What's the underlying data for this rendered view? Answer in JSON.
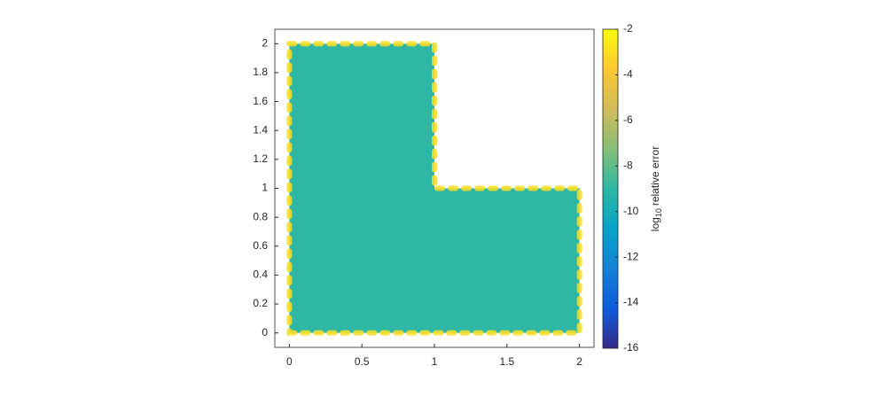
{
  "chart_data": {
    "type": "field",
    "domain": [
      [
        0,
        0
      ],
      [
        2,
        0
      ],
      [
        2,
        1
      ],
      [
        1,
        1
      ],
      [
        1,
        2
      ],
      [
        0,
        2
      ]
    ],
    "interior_value": -9,
    "boundary_value": -3,
    "xlim": [
      -0.1,
      2.1
    ],
    "ylim": [
      -0.1,
      2.1
    ],
    "xticks": [
      0,
      0.5,
      1,
      1.5,
      2
    ],
    "yticks": [
      0,
      0.2,
      0.4,
      0.6,
      0.8,
      1,
      1.2,
      1.4,
      1.6,
      1.8,
      2
    ],
    "clim": [
      -16,
      -2
    ],
    "cticks": [
      -2,
      -4,
      -6,
      -8,
      -10,
      -12,
      -14,
      -16
    ],
    "colorbar_label_parts": [
      "log",
      "10",
      "relative error"
    ],
    "colormap": [
      "#352a87",
      "#0f5cdd",
      "#1481d6",
      "#06a4ca",
      "#2eb7a4",
      "#87bf77",
      "#d1bb59",
      "#fec832",
      "#f9fb0e"
    ]
  }
}
